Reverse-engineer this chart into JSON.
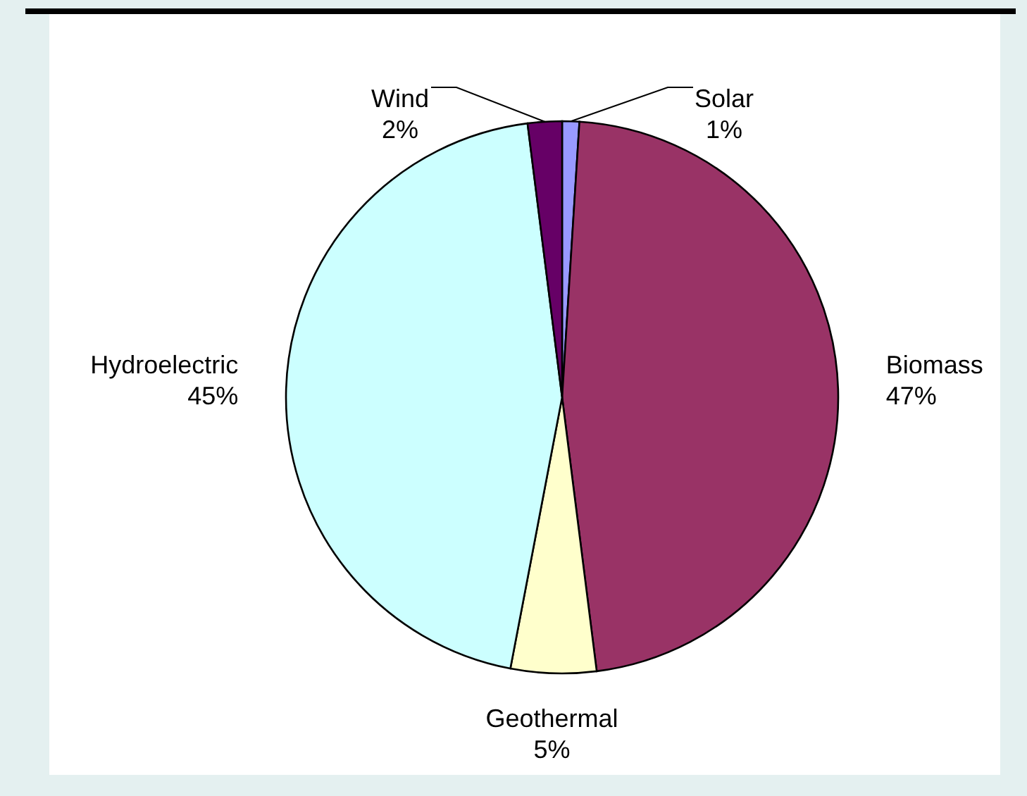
{
  "chart_data": {
    "type": "pie",
    "categories": [
      "Solar",
      "Biomass",
      "Geothermal",
      "Hydroelectric",
      "Wind"
    ],
    "values": [
      1,
      47,
      5,
      45,
      2
    ],
    "value_labels": [
      "1%",
      "47%",
      "5%",
      "45%",
      "2%"
    ],
    "colors": [
      "#9999ff",
      "#993366",
      "#ffffcc",
      "#ccffff",
      "#660066"
    ]
  }
}
